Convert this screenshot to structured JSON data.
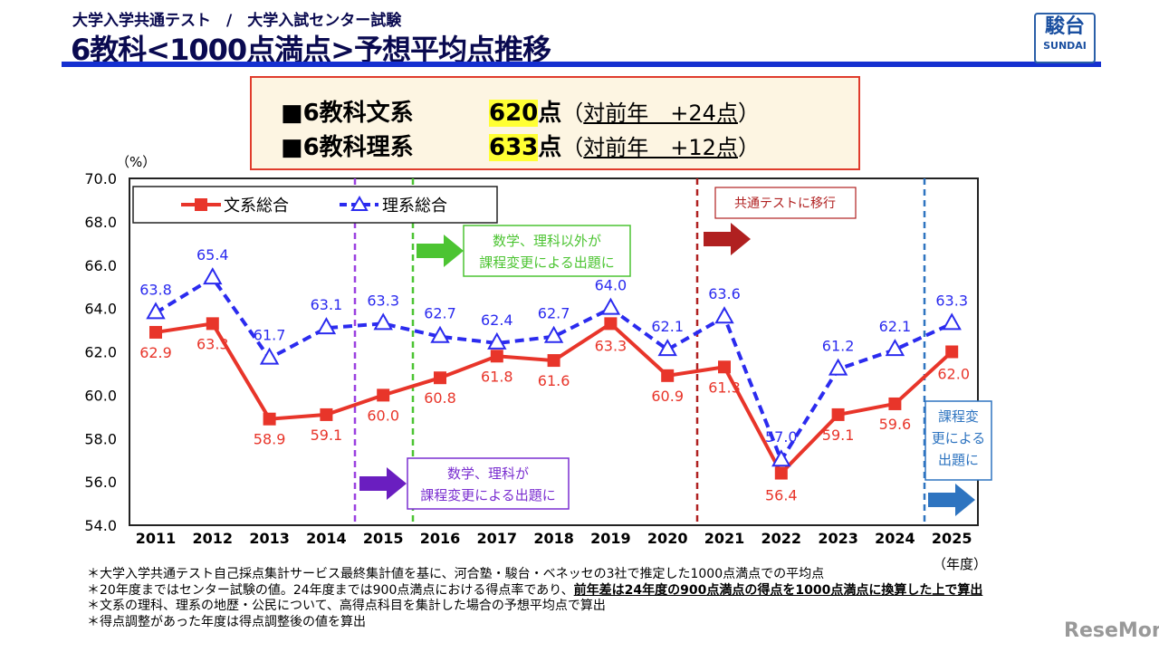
{
  "header": {
    "subtitle": "大学入学共通テスト　/　大学入試センター試験",
    "title": "6教科<1000点満点>予想平均点推移",
    "logo_kanji": "駿台",
    "logo_text": "SUNDAI"
  },
  "summary": [
    {
      "label": "■6教科文系",
      "score": "620",
      "unit": "点",
      "diff_open": "（",
      "diff": "対前年　+24点",
      "diff_close": "）"
    },
    {
      "label": "■6教科理系",
      "score": "633",
      "unit": "点",
      "diff_open": "（",
      "diff": "対前年　+12点",
      "diff_close": "）"
    }
  ],
  "chart_data": {
    "type": "line",
    "ylabel": "（%）",
    "xlabel": "（年度）",
    "ylim": [
      54.0,
      70.0
    ],
    "yticks": [
      "54.0",
      "56.0",
      "58.0",
      "60.0",
      "62.0",
      "64.0",
      "66.0",
      "68.0",
      "70.0"
    ],
    "categories": [
      "2011",
      "2012",
      "2013",
      "2014",
      "2015",
      "2016",
      "2017",
      "2018",
      "2019",
      "2020",
      "2021",
      "2022",
      "2023",
      "2024",
      "2025"
    ],
    "series": [
      {
        "name": "文系総合",
        "color": "#e8352a",
        "marker": "square",
        "values": [
          62.9,
          63.3,
          58.9,
          59.1,
          60.0,
          60.8,
          61.8,
          61.6,
          63.3,
          60.9,
          61.3,
          56.4,
          59.1,
          59.6,
          62.0
        ]
      },
      {
        "name": "理系総合",
        "color": "#2b2bef",
        "marker": "triangle",
        "dashed": true,
        "values": [
          63.8,
          65.4,
          61.7,
          63.1,
          63.3,
          62.7,
          62.4,
          62.7,
          64.0,
          62.1,
          63.6,
          57.0,
          61.2,
          62.1,
          63.3
        ]
      }
    ],
    "legend": "top-left",
    "annotations": [
      {
        "text": [
          "数学、理科が",
          "課程変更による出題に"
        ],
        "color": "#7a2ed0"
      },
      {
        "text": [
          "数学、理科以外が",
          "課程変更による出題に"
        ],
        "color": "#4cc432"
      },
      {
        "text": [
          "共通テストに移行"
        ],
        "color": "#b02020"
      },
      {
        "text": [
          "課程変",
          "更による",
          "出題に"
        ],
        "color": "#2e74c0"
      }
    ]
  },
  "notes": [
    "＊大学入学共通テスト自己採点集計サービス最終集計値を基に、河合塾・駿台・ベネッセの3社で推定した1000点満点での平均点",
    "＊20年度まではセンター試験の値。24年度までは900点満点における得点率であり、",
    "前年差は24年度の900点満点の得点を1000点満点に換算した上で算出",
    "＊文系の理科、理系の地歴・公民について、高得点科目を集計した場合の予想平均点で算出",
    "＊得点調整があった年度は得点調整後の値を算出"
  ],
  "watermark": "ReseMom"
}
